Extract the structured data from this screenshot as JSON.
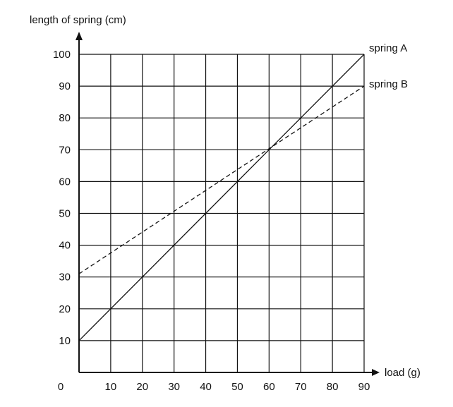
{
  "chart_data": {
    "type": "line",
    "xlabel": "load (g)",
    "ylabel": "length of spring (cm)",
    "xlim": [
      0,
      90
    ],
    "ylim": [
      0,
      100
    ],
    "origin_label": "0",
    "x_ticks": [
      "10",
      "20",
      "30",
      "40",
      "50",
      "60",
      "70",
      "80",
      "90"
    ],
    "y_ticks": [
      "10",
      "20",
      "30",
      "40",
      "50",
      "60",
      "70",
      "80",
      "90",
      "100"
    ],
    "grid": true,
    "series": [
      {
        "name": "spring A",
        "style": "solid",
        "x": [
          0,
          90
        ],
        "y": [
          10,
          100
        ]
      },
      {
        "name": "spring B",
        "style": "dashed",
        "x": [
          0,
          90
        ],
        "y": [
          31,
          90
        ]
      }
    ]
  }
}
